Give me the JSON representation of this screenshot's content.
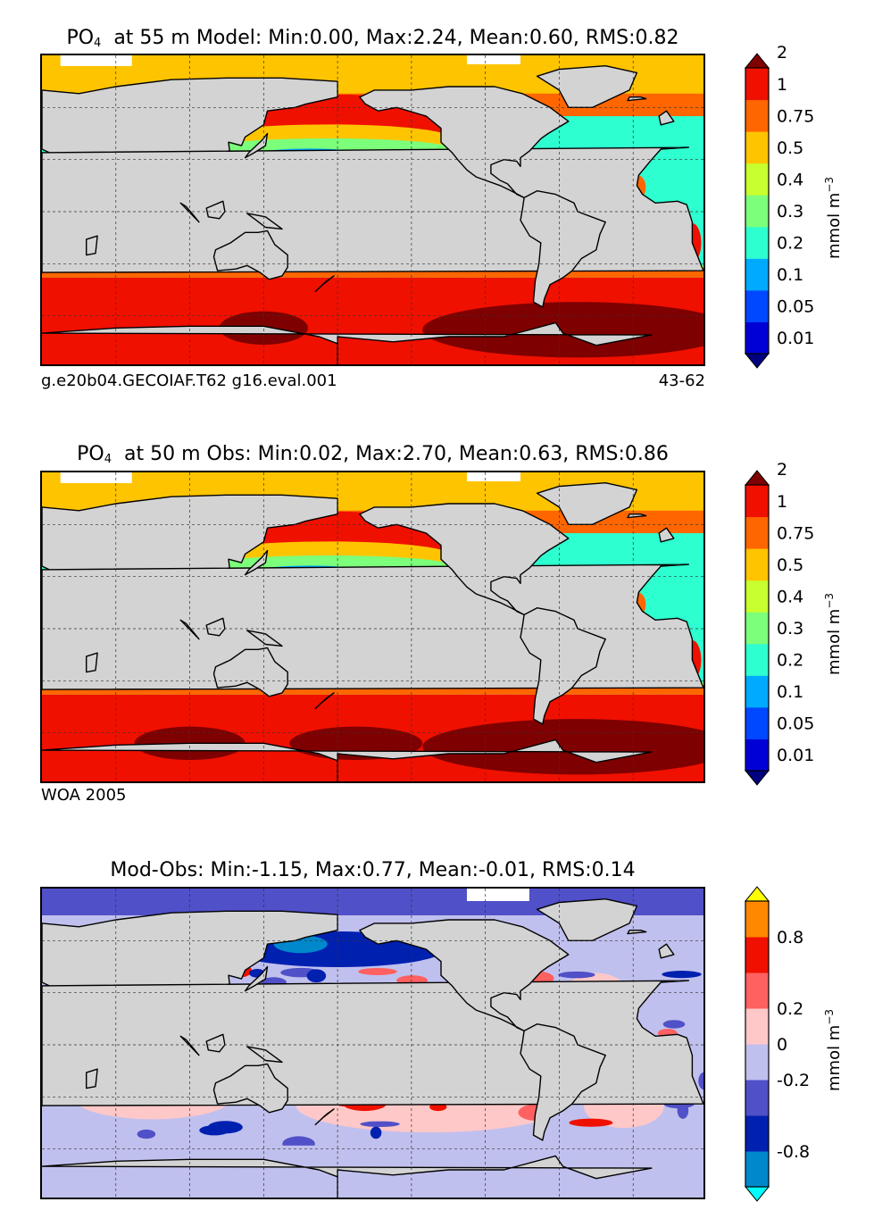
{
  "chart_data": [
    {
      "type": "heatmap",
      "title_prefix": "PO",
      "title_sub": "4",
      "title_rest": "at 55 m Model: Min:0.00, Max:2.24, Mean:0.60, RMS:0.82",
      "case_label": "g.e20b04.GECOIAF.T62 g16.eval.001",
      "years_label": "43-62",
      "colorbar": {
        "unit": "mmol m",
        "unit_exp": "−3",
        "ticks": [
          "0.01",
          "0.05",
          "0.1",
          "0.2",
          "0.3",
          "0.4",
          "0.5",
          "0.75",
          "1",
          "2"
        ],
        "colors": [
          "#000080",
          "#0000d6",
          "#0047ff",
          "#00aaff",
          "#2effd0",
          "#7cff7a",
          "#c8ff2e",
          "#ffc400",
          "#ff6600",
          "#f01000",
          "#7f0000"
        ]
      }
    },
    {
      "type": "heatmap",
      "title_prefix": "PO",
      "title_sub": "4",
      "title_rest": "at 50 m Obs: Min:0.02, Max:2.70, Mean:0.63, RMS:0.86",
      "case_label": "WOA 2005",
      "colorbar": {
        "unit": "mmol m",
        "unit_exp": "−3",
        "ticks": [
          "0.01",
          "0.05",
          "0.1",
          "0.2",
          "0.3",
          "0.4",
          "0.5",
          "0.75",
          "1",
          "2"
        ],
        "colors": [
          "#000080",
          "#0000d6",
          "#0047ff",
          "#00aaff",
          "#2effd0",
          "#7cff7a",
          "#c8ff2e",
          "#ffc400",
          "#ff6600",
          "#f01000",
          "#7f0000"
        ]
      }
    },
    {
      "type": "heatmap",
      "title_rest": "Mod-Obs: Min:-1.15, Max:0.77, Mean:-0.01, RMS:0.14",
      "colorbar": {
        "unit": "mmol m",
        "unit_exp": "−3",
        "ticks": [
          "-0.8",
          "-0.2",
          "0",
          "0.2",
          "0.8"
        ],
        "colors": [
          "#00ffff",
          "#0088cc",
          "#0020b0",
          "#5050c8",
          "#c0c0ee",
          "#ffc8c8",
          "#ff6060",
          "#f01000",
          "#ff8800",
          "#ffff00"
        ]
      }
    }
  ]
}
